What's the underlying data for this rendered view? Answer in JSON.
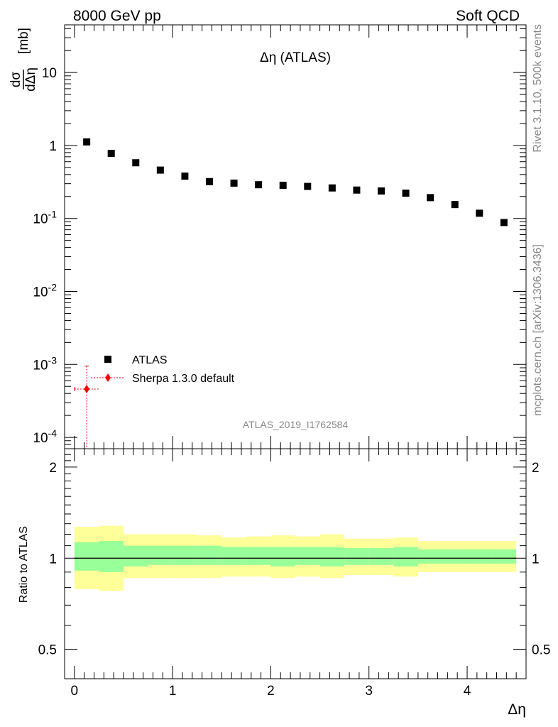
{
  "header": {
    "left": "8000 GeV pp",
    "right": "Soft QCD"
  },
  "side_text": {
    "rivet": "Rivet 3.1.10,  500k events",
    "mcplots": "mcplots.cern.ch [arXiv:1306.3436]"
  },
  "analysis_id": "ATLAS_2019_I1762584",
  "colors": {
    "data": "#000000",
    "mc": "#ff0000",
    "band_inner": "#99ff99",
    "band_outer": "#ffff99",
    "gray_text": "#888888"
  },
  "chart_data": [
    {
      "type": "scatter",
      "title": "Δη (ATLAS)",
      "ylabel": "dσ/dΔη [mb]",
      "xlabel": "",
      "yscale": "log",
      "xlim": [
        -0.1,
        4.6
      ],
      "ylim": [
        7e-05,
        45
      ],
      "ytick_labels": [
        "10^-4",
        "10^-3",
        "10^-2",
        "10^-1",
        "1",
        "10"
      ],
      "legend": {
        "placement": "bottom-left",
        "entries": [
          "ATLAS",
          "Sherpa 1.3.0 default"
        ]
      },
      "series": [
        {
          "name": "ATLAS",
          "marker": "square",
          "x": [
            0.125,
            0.375,
            0.625,
            0.875,
            1.125,
            1.375,
            1.625,
            1.875,
            2.125,
            2.375,
            2.625,
            2.875,
            3.125,
            3.375,
            3.625,
            3.875,
            4.125,
            4.375
          ],
          "y": [
            1.12,
            0.78,
            0.58,
            0.46,
            0.38,
            0.32,
            0.305,
            0.29,
            0.285,
            0.275,
            0.262,
            0.245,
            0.238,
            0.222,
            0.193,
            0.155,
            0.118,
            0.088
          ]
        },
        {
          "name": "Sherpa 1.3.0 default",
          "marker": "diamond",
          "x": [
            0.125
          ],
          "y": [
            0.00046
          ],
          "xerr": [
            0.125
          ],
          "yerr_low": [
            0.00046
          ],
          "yerr_high": [
            0.00049
          ]
        }
      ]
    },
    {
      "type": "area",
      "xlabel": "Δη",
      "ylabel": "Ratio to ATLAS",
      "xlim": [
        -0.1,
        4.6
      ],
      "ylim": [
        0.4,
        2.3
      ],
      "xtick_labels": [
        "0",
        "1",
        "2",
        "3",
        "4"
      ],
      "ytick_labels": [
        "0.5",
        "1",
        "2"
      ],
      "reference_line": 1,
      "bins": [
        0,
        0.25,
        0.5,
        0.75,
        1.0,
        1.25,
        1.5,
        1.75,
        2.0,
        2.25,
        2.5,
        2.75,
        3.0,
        3.25,
        3.5,
        3.75,
        4.0,
        4.25,
        4.5
      ],
      "series": [
        {
          "name": "",
          "values_low": [
            0.91,
            0.9,
            0.94,
            0.95,
            0.95,
            0.95,
            0.95,
            0.95,
            0.94,
            0.95,
            0.94,
            0.95,
            0.95,
            0.94,
            0.96,
            0.96,
            0.96,
            0.96
          ]
        },
        {
          "name": "",
          "values_high": [
            1.13,
            1.14,
            1.1,
            1.1,
            1.1,
            1.1,
            1.09,
            1.09,
            1.09,
            1.09,
            1.09,
            1.08,
            1.08,
            1.09,
            1.07,
            1.07,
            1.07,
            1.07
          ]
        },
        {
          "name": "",
          "values_low": [
            0.79,
            0.78,
            0.86,
            0.86,
            0.86,
            0.86,
            0.87,
            0.87,
            0.86,
            0.87,
            0.86,
            0.88,
            0.88,
            0.87,
            0.9,
            0.9,
            0.9,
            0.9
          ]
        },
        {
          "name": "",
          "values_high": [
            1.27,
            1.28,
            1.2,
            1.2,
            1.2,
            1.19,
            1.17,
            1.18,
            1.19,
            1.18,
            1.2,
            1.16,
            1.16,
            1.17,
            1.14,
            1.14,
            1.14,
            1.14
          ]
        }
      ]
    }
  ]
}
